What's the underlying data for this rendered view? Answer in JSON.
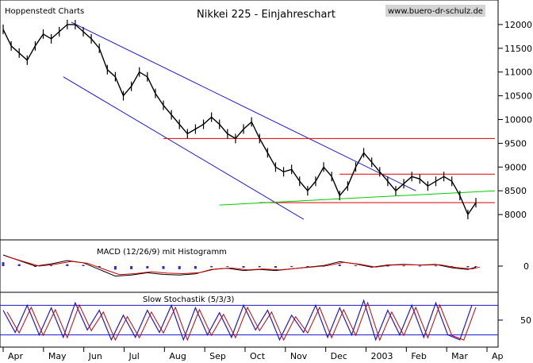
{
  "header": {
    "left_label": "Hoppenstedt Charts",
    "title": "Nikkei 225 - Einjahreschart",
    "url": "www.buero-dr-schulz.de"
  },
  "panels": {
    "macd_label": "MACD (12/26/9) mit Histogramm",
    "stoch_label": "Slow Stochastik (5/3/3)"
  },
  "colors": {
    "price": "#000000",
    "channel": "#1a1acc",
    "resistance": "#dd0000",
    "trend_green": "#00cc00",
    "histogram": "#2b2bd0",
    "signal": "#cc0000"
  },
  "chart_data": [
    {
      "type": "line",
      "name": "price-panel",
      "title": "Nikkei 225 - Einjahreschart",
      "xlabel": "",
      "ylabel": "",
      "ylim": [
        7500,
        12500
      ],
      "y_ticks": [
        8000,
        8500,
        9000,
        9500,
        10000,
        10500,
        11000,
        11500,
        12000
      ],
      "x_ticks": [
        "Apr",
        "May",
        "Jun",
        "Jul",
        "Aug",
        "Sep",
        "Oct",
        "Nov",
        "Dec",
        "2003",
        "Feb",
        "Mar",
        "Ap"
      ],
      "x_index_range": [
        0,
        118
      ],
      "grid": false,
      "series": [
        {
          "x": [
            0,
            2,
            4,
            6,
            8,
            10,
            12,
            14,
            16,
            18,
            20,
            22,
            24,
            26,
            28,
            30,
            32,
            34,
            36,
            38,
            40,
            42,
            44,
            46,
            48,
            50,
            52,
            54,
            56,
            58,
            60,
            62,
            64,
            66,
            68,
            70,
            72,
            74,
            76,
            78,
            80,
            82,
            84,
            86,
            88,
            90,
            92,
            94,
            96,
            98,
            100,
            102,
            104,
            106,
            108,
            110,
            112,
            114,
            116,
            118
          ],
          "values": [
            11900,
            11550,
            11400,
            11250,
            11550,
            11800,
            11700,
            11850,
            12000,
            12000,
            11850,
            11700,
            11500,
            11050,
            10900,
            10500,
            10700,
            11000,
            10900,
            10550,
            10300,
            10100,
            9900,
            9700,
            9800,
            9900,
            10050,
            9900,
            9700,
            9600,
            9800,
            9950,
            9600,
            9300,
            9000,
            8900,
            8950,
            8700,
            8500,
            8700,
            9000,
            8800,
            8400,
            8600,
            9000,
            9300,
            9100,
            8900,
            8700,
            8500,
            8650,
            8800,
            8750,
            8600,
            8700,
            8800,
            8700,
            8400,
            8000,
            8250
          ]
        }
      ],
      "levels": [
        {
          "value": 9600,
          "from": 40,
          "to": 118
        },
        {
          "value": 8850,
          "from": 84,
          "to": 118
        },
        {
          "value": 8250,
          "from": 64,
          "to": 118
        }
      ]
    },
    {
      "type": "bar",
      "name": "macd-panel",
      "title": "MACD (12/26/9) mit Histogramm",
      "y_ticks": [
        0
      ],
      "ylim": [
        -400,
        400
      ],
      "series": [
        {
          "name": "MACD (12/26/9) mit Histogramm",
          "x": [
            0,
            4,
            8,
            12,
            16,
            20,
            24,
            28,
            32,
            36,
            40,
            44,
            48,
            52,
            56,
            60,
            64,
            68,
            72,
            76,
            80,
            84,
            88,
            92,
            96,
            100,
            104,
            108,
            112,
            116,
            118
          ],
          "values": [
            200,
            100,
            0,
            40,
            100,
            60,
            -60,
            -180,
            -160,
            -120,
            -150,
            -160,
            -140,
            -60,
            -40,
            -80,
            -60,
            -80,
            -50,
            -20,
            10,
            80,
            40,
            -20,
            20,
            30,
            20,
            30,
            -30,
            -60,
            -20
          ]
        }
      ]
    },
    {
      "type": "line",
      "name": "stoch-panel",
      "title": "Slow Stochastik (5/3/3)",
      "y_ticks": [
        50
      ],
      "ylim": [
        0,
        100
      ],
      "levels": [
        80,
        20
      ],
      "series": [
        {
          "name": "Slow Stochastik (5/3/3)",
          "x": [
            0,
            3,
            6,
            9,
            12,
            15,
            18,
            21,
            24,
            27,
            30,
            33,
            36,
            39,
            42,
            45,
            48,
            51,
            54,
            57,
            60,
            63,
            66,
            69,
            72,
            75,
            78,
            81,
            84,
            87,
            90,
            93,
            96,
            99,
            102,
            105,
            108,
            111,
            114,
            117
          ],
          "values": [
            70,
            25,
            80,
            20,
            75,
            15,
            85,
            30,
            70,
            10,
            60,
            15,
            70,
            25,
            80,
            10,
            75,
            20,
            65,
            15,
            80,
            30,
            70,
            10,
            60,
            25,
            80,
            15,
            75,
            20,
            90,
            10,
            70,
            20,
            80,
            15,
            85,
            20,
            10,
            80
          ]
        }
      ]
    }
  ]
}
